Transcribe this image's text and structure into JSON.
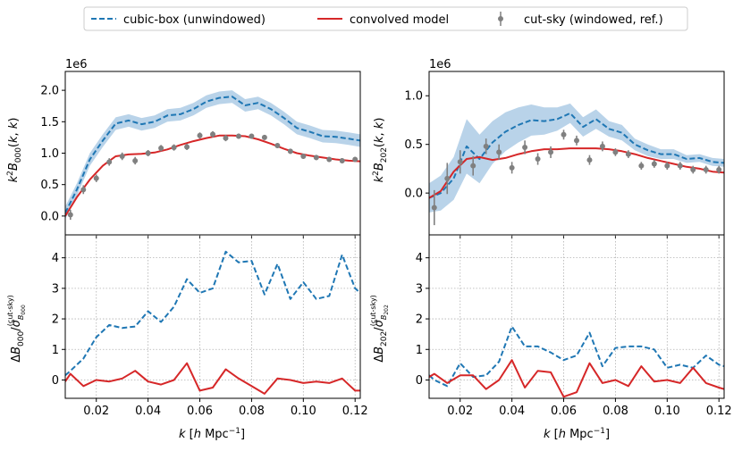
{
  "chart_data": [
    {
      "type": "line",
      "panel": "top-left",
      "ylabel": "k²B₀₀₀(k, k)",
      "offset_text": "1e6",
      "xlim": [
        0.008,
        0.122
      ],
      "ylim": [
        -0.3,
        2.3
      ],
      "yticks": [
        0.0,
        0.5,
        1.0,
        1.5,
        2.0
      ],
      "ytick_labels": [
        "0.0",
        "0.5",
        "1.0",
        "1.5",
        "2.0"
      ],
      "series": [
        {
          "name": "cubic-box (unwindowed)",
          "x": [
            0.008,
            0.0125,
            0.0175,
            0.0225,
            0.0275,
            0.0325,
            0.0375,
            0.0425,
            0.0475,
            0.0525,
            0.0575,
            0.0625,
            0.0675,
            0.0725,
            0.0775,
            0.0825,
            0.0875,
            0.0925,
            0.0975,
            0.1025,
            0.1075,
            0.1125,
            0.1175,
            0.122
          ],
          "y": [
            0.05,
            0.42,
            0.9,
            1.2,
            1.47,
            1.52,
            1.46,
            1.5,
            1.6,
            1.62,
            1.7,
            1.82,
            1.88,
            1.9,
            1.76,
            1.8,
            1.7,
            1.56,
            1.4,
            1.34,
            1.27,
            1.26,
            1.23,
            1.2
          ],
          "band": 0.1
        },
        {
          "name": "convolved model",
          "x": [
            0.008,
            0.0125,
            0.0175,
            0.0225,
            0.0275,
            0.0325,
            0.0375,
            0.0425,
            0.0475,
            0.0525,
            0.0575,
            0.0625,
            0.0675,
            0.0725,
            0.0775,
            0.0825,
            0.0875,
            0.0925,
            0.0975,
            0.1025,
            0.1075,
            0.1125,
            0.1175,
            0.122
          ],
          "y": [
            0.0,
            0.3,
            0.58,
            0.8,
            0.95,
            0.98,
            0.99,
            1.01,
            1.06,
            1.13,
            1.19,
            1.24,
            1.28,
            1.28,
            1.27,
            1.22,
            1.15,
            1.07,
            1.0,
            0.96,
            0.93,
            0.9,
            0.88,
            0.87
          ]
        },
        {
          "name": "cut-sky (windowed, ref.)",
          "x": [
            0.01,
            0.015,
            0.02,
            0.025,
            0.03,
            0.035,
            0.04,
            0.045,
            0.05,
            0.055,
            0.06,
            0.065,
            0.07,
            0.075,
            0.08,
            0.085,
            0.09,
            0.095,
            0.1,
            0.105,
            0.11,
            0.115,
            0.12
          ],
          "y": [
            0.02,
            0.42,
            0.6,
            0.86,
            0.95,
            0.88,
            1.0,
            1.08,
            1.09,
            1.1,
            1.28,
            1.3,
            1.24,
            1.27,
            1.27,
            1.25,
            1.12,
            1.03,
            0.95,
            0.93,
            0.9,
            0.88,
            0.9
          ],
          "err": [
            0.08,
            0.07,
            0.06,
            0.06,
            0.06,
            0.06,
            0.05,
            0.05,
            0.05,
            0.05,
            0.05,
            0.05,
            0.05,
            0.04,
            0.04,
            0.04,
            0.04,
            0.04,
            0.04,
            0.04,
            0.04,
            0.04,
            0.04
          ]
        }
      ]
    },
    {
      "type": "line",
      "panel": "top-right",
      "ylabel": "k²B₂₀₂(k, k)",
      "offset_text": "1e6",
      "xlim": [
        0.008,
        0.122
      ],
      "ylim": [
        -0.43,
        1.25
      ],
      "yticks": [
        0.0,
        0.5,
        1.0
      ],
      "ytick_labels": [
        "0.0",
        "0.5",
        "1.0"
      ],
      "series": [
        {
          "name": "cubic-box (unwindowed)",
          "x": [
            0.008,
            0.0125,
            0.0175,
            0.0225,
            0.0275,
            0.0325,
            0.0375,
            0.0425,
            0.0475,
            0.0525,
            0.0575,
            0.0625,
            0.0675,
            0.0725,
            0.0775,
            0.0825,
            0.0875,
            0.0925,
            0.0975,
            0.1025,
            0.1075,
            0.1125,
            0.1175,
            0.122
          ],
          "y": [
            -0.05,
            0.0,
            0.15,
            0.48,
            0.35,
            0.52,
            0.63,
            0.7,
            0.75,
            0.74,
            0.76,
            0.82,
            0.68,
            0.76,
            0.66,
            0.62,
            0.5,
            0.44,
            0.4,
            0.4,
            0.35,
            0.36,
            0.32,
            0.31
          ],
          "band": [
            0.15,
            0.18,
            0.22,
            0.28,
            0.25,
            0.22,
            0.2,
            0.18,
            0.16,
            0.14,
            0.12,
            0.1,
            0.1,
            0.1,
            0.08,
            0.08,
            0.06,
            0.06,
            0.05,
            0.05,
            0.04,
            0.04,
            0.04,
            0.04
          ]
        },
        {
          "name": "convolved model",
          "x": [
            0.008,
            0.0125,
            0.0175,
            0.0225,
            0.0275,
            0.0325,
            0.0375,
            0.0425,
            0.0475,
            0.0525,
            0.0575,
            0.0625,
            0.0675,
            0.0725,
            0.0775,
            0.0825,
            0.0875,
            0.0925,
            0.0975,
            0.1025,
            0.1075,
            0.1125,
            0.1175,
            0.122
          ],
          "y": [
            -0.05,
            0.02,
            0.22,
            0.35,
            0.37,
            0.34,
            0.36,
            0.4,
            0.43,
            0.45,
            0.45,
            0.46,
            0.46,
            0.46,
            0.45,
            0.43,
            0.4,
            0.36,
            0.33,
            0.3,
            0.27,
            0.25,
            0.22,
            0.21
          ]
        },
        {
          "name": "cut-sky (windowed, ref.)",
          "x": [
            0.01,
            0.015,
            0.02,
            0.025,
            0.03,
            0.035,
            0.04,
            0.045,
            0.05,
            0.055,
            0.06,
            0.065,
            0.07,
            0.075,
            0.08,
            0.085,
            0.09,
            0.095,
            0.1,
            0.105,
            0.11,
            0.115,
            0.12
          ],
          "y": [
            -0.15,
            0.15,
            0.32,
            0.28,
            0.48,
            0.42,
            0.26,
            0.47,
            0.35,
            0.42,
            0.6,
            0.54,
            0.34,
            0.48,
            0.42,
            0.4,
            0.28,
            0.3,
            0.28,
            0.28,
            0.24,
            0.24,
            0.24
          ],
          "err": [
            0.18,
            0.16,
            0.12,
            0.1,
            0.08,
            0.08,
            0.06,
            0.07,
            0.06,
            0.06,
            0.05,
            0.05,
            0.05,
            0.05,
            0.04,
            0.04,
            0.04,
            0.04,
            0.04,
            0.04,
            0.04,
            0.04,
            0.04
          ]
        }
      ]
    },
    {
      "type": "line",
      "panel": "bottom-left",
      "ylabel": "ΔB₀₀₀/σ(cut-sky) B₀₀₀",
      "xlabel": "k [h Mpc⁻¹]",
      "xlim": [
        0.008,
        0.122
      ],
      "ylim": [
        -0.6,
        4.75
      ],
      "grid": true,
      "yticks": [
        0,
        1,
        2,
        3,
        4
      ],
      "ytick_labels": [
        "0",
        "1",
        "2",
        "3",
        "4"
      ],
      "xticks": [
        0.02,
        0.04,
        0.06,
        0.08,
        0.1,
        0.12
      ],
      "xtick_labels": [
        "0.02",
        "0.04",
        "0.06",
        "0.08",
        "0.10",
        "0.12"
      ],
      "series": [
        {
          "name": "cubic-box (unwindowed)",
          "x": [
            0.008,
            0.01,
            0.015,
            0.02,
            0.025,
            0.03,
            0.035,
            0.04,
            0.045,
            0.05,
            0.055,
            0.06,
            0.065,
            0.07,
            0.075,
            0.08,
            0.085,
            0.09,
            0.095,
            0.1,
            0.105,
            0.11,
            0.115,
            0.12,
            0.122
          ],
          "y": [
            0.15,
            0.3,
            0.7,
            1.4,
            1.8,
            1.7,
            1.75,
            2.25,
            1.9,
            2.4,
            3.3,
            2.85,
            3.0,
            4.2,
            3.85,
            3.9,
            2.8,
            3.8,
            2.65,
            3.2,
            2.65,
            2.75,
            4.1,
            3.0,
            2.85
          ]
        },
        {
          "name": "convolved model",
          "x": [
            0.008,
            0.01,
            0.015,
            0.02,
            0.025,
            0.03,
            0.035,
            0.04,
            0.045,
            0.05,
            0.055,
            0.06,
            0.065,
            0.07,
            0.075,
            0.08,
            0.085,
            0.09,
            0.095,
            0.1,
            0.105,
            0.11,
            0.115,
            0.12,
            0.122
          ],
          "y": [
            -0.05,
            0.2,
            -0.2,
            0.0,
            -0.05,
            0.05,
            0.3,
            -0.05,
            -0.15,
            0.0,
            0.55,
            -0.35,
            -0.25,
            0.35,
            0.05,
            -0.2,
            -0.45,
            0.05,
            0.0,
            -0.1,
            -0.05,
            -0.1,
            0.05,
            -0.35,
            -0.35
          ]
        }
      ]
    },
    {
      "type": "line",
      "panel": "bottom-right",
      "ylabel": "ΔB₂₀₂/σ(cut-sky) B₂₀₂",
      "xlabel": "k [h Mpc⁻¹]",
      "xlim": [
        0.008,
        0.122
      ],
      "ylim": [
        -0.6,
        4.75
      ],
      "grid": true,
      "yticks": [
        0,
        1,
        2,
        3,
        4
      ],
      "ytick_labels": [
        "0",
        "1",
        "2",
        "3",
        "4"
      ],
      "xticks": [
        0.02,
        0.04,
        0.06,
        0.08,
        0.1,
        0.12
      ],
      "xtick_labels": [
        "0.02",
        "0.04",
        "0.06",
        "0.08",
        "0.10",
        "0.12"
      ],
      "series": [
        {
          "name": "cubic-box (unwindowed)",
          "x": [
            0.008,
            0.01,
            0.015,
            0.02,
            0.025,
            0.03,
            0.035,
            0.04,
            0.045,
            0.05,
            0.055,
            0.06,
            0.065,
            0.07,
            0.075,
            0.08,
            0.085,
            0.09,
            0.095,
            0.1,
            0.105,
            0.11,
            0.115,
            0.12,
            0.122
          ],
          "y": [
            0.15,
            0.0,
            -0.2,
            0.55,
            0.1,
            0.15,
            0.6,
            1.75,
            1.1,
            1.1,
            0.9,
            0.65,
            0.8,
            1.55,
            0.45,
            1.05,
            1.1,
            1.1,
            1.0,
            0.4,
            0.5,
            0.4,
            0.8,
            0.5,
            0.45
          ]
        },
        {
          "name": "convolved model",
          "x": [
            0.008,
            0.01,
            0.015,
            0.02,
            0.025,
            0.03,
            0.035,
            0.04,
            0.045,
            0.05,
            0.055,
            0.06,
            0.065,
            0.07,
            0.075,
            0.08,
            0.085,
            0.09,
            0.095,
            0.1,
            0.105,
            0.11,
            0.115,
            0.12,
            0.122
          ],
          "y": [
            0.1,
            0.2,
            -0.1,
            0.15,
            0.15,
            -0.3,
            0.0,
            0.65,
            -0.25,
            0.3,
            0.25,
            -0.55,
            -0.4,
            0.55,
            -0.1,
            0.0,
            -0.2,
            0.45,
            -0.05,
            0.0,
            -0.1,
            0.4,
            -0.1,
            -0.25,
            -0.3
          ]
        }
      ]
    }
  ],
  "legend": {
    "position": "top-center",
    "entries": [
      {
        "label": "cubic-box (unwindowed)",
        "style": "dashed-line"
      },
      {
        "label": "convolved model",
        "style": "solid-line"
      },
      {
        "label": "cut-sky (windowed, ref.)",
        "style": "errorbar-point"
      }
    ]
  },
  "colors": {
    "cubic": "#1f77b4",
    "band": "#a8c8e4",
    "model": "#d62728",
    "cutsky": "#808080",
    "grid": "#b0b0b0"
  }
}
